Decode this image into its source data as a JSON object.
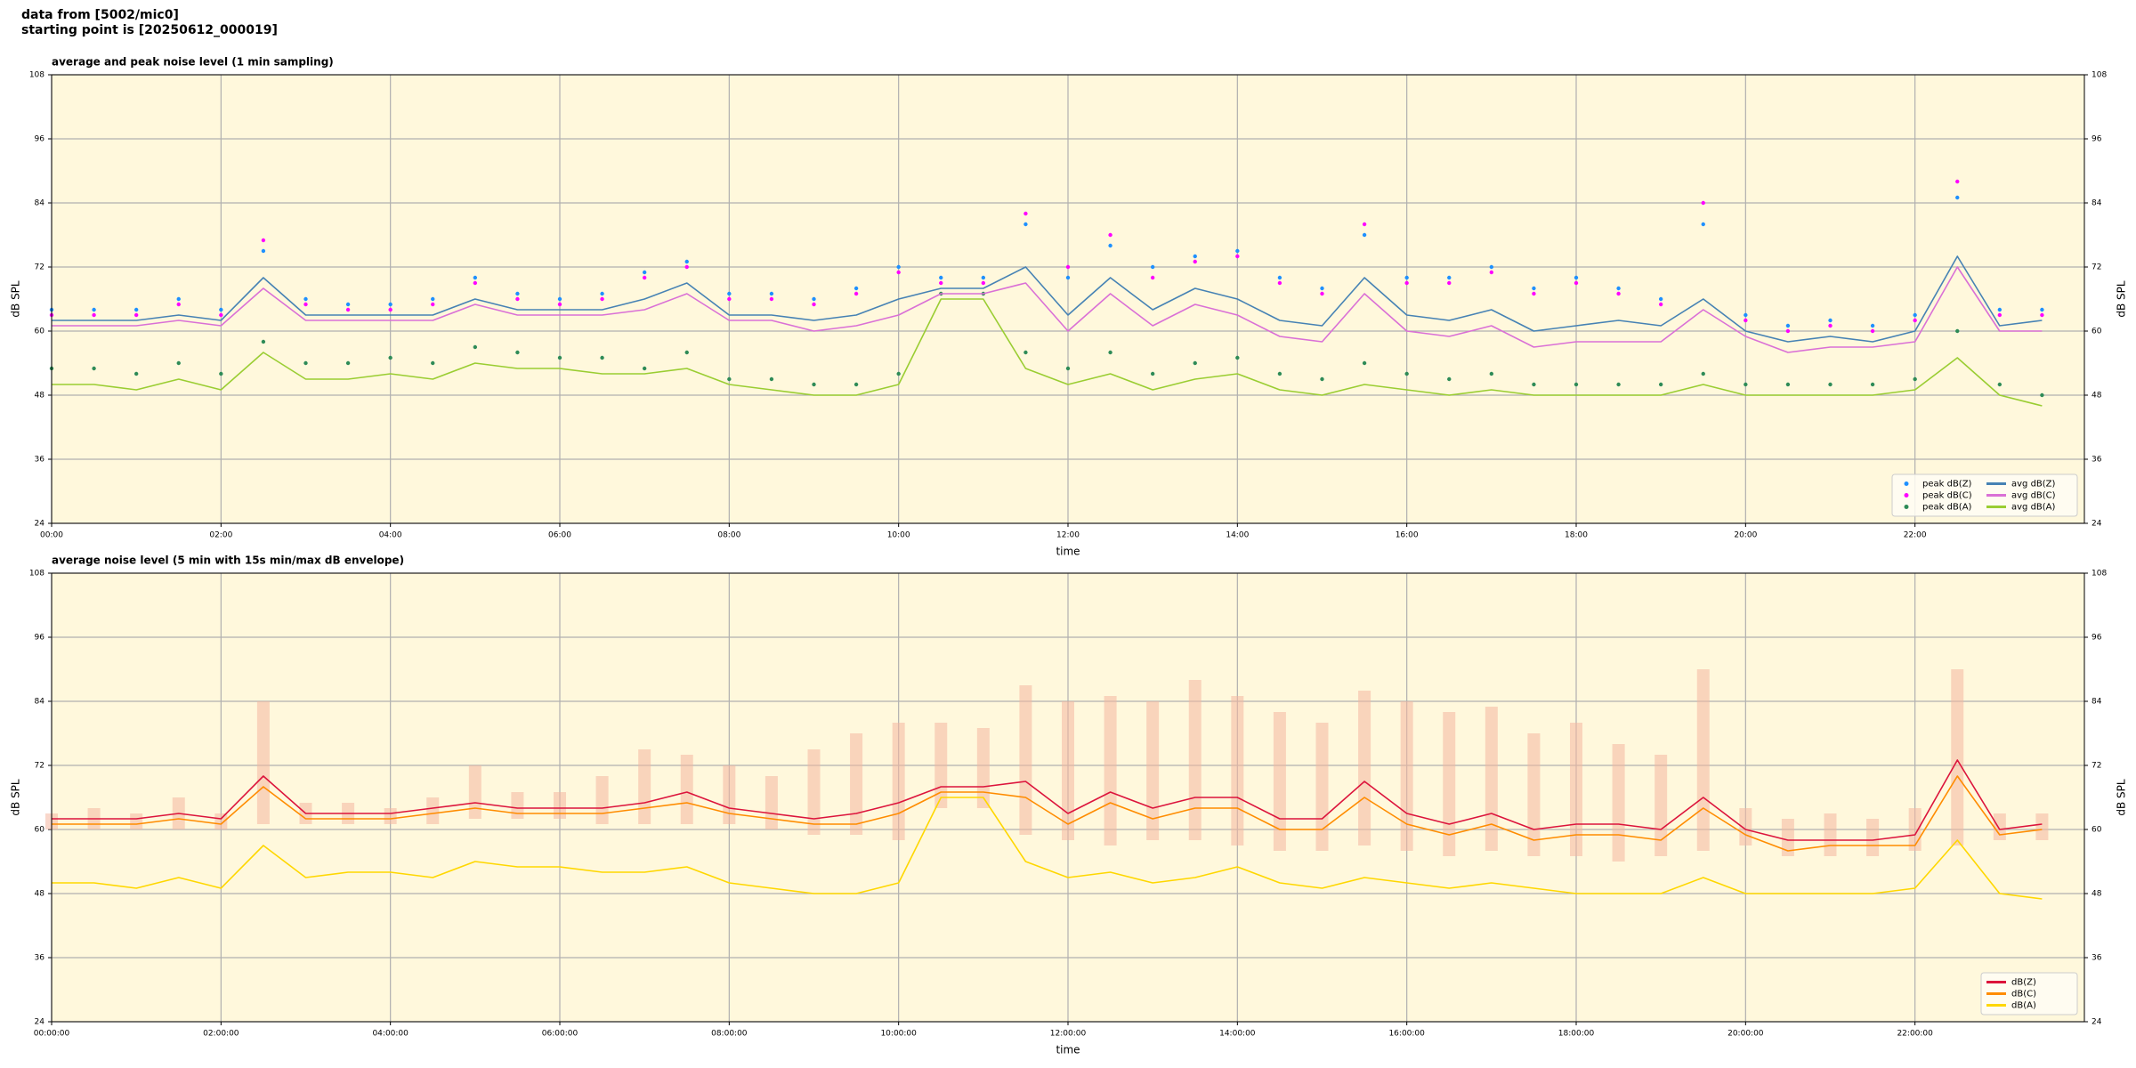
{
  "header": {
    "lines": [
      "data from [5002/mic0]",
      "starting point is [20250612_000019]"
    ]
  },
  "chart_data": [
    {
      "type": "line",
      "title": "average and peak noise level (1 min sampling)",
      "xlabel": "time",
      "ylabel": "dB SPL",
      "background": "#fff8dc",
      "grid": true,
      "legend": "lower right",
      "xlim": [
        0,
        24
      ],
      "ylim": [
        24,
        108
      ],
      "yticks": [
        24,
        36,
        48,
        60,
        72,
        84,
        96,
        108
      ],
      "xticks": [
        {
          "value": 0,
          "label": "00:00"
        },
        {
          "value": 2,
          "label": "02:00"
        },
        {
          "value": 4,
          "label": "04:00"
        },
        {
          "value": 6,
          "label": "06:00"
        },
        {
          "value": 8,
          "label": "08:00"
        },
        {
          "value": 10,
          "label": "10:00"
        },
        {
          "value": 12,
          "label": "12:00"
        },
        {
          "value": 14,
          "label": "14:00"
        },
        {
          "value": 16,
          "label": "16:00"
        },
        {
          "value": 18,
          "label": "18:00"
        },
        {
          "value": 20,
          "label": "20:00"
        },
        {
          "value": 22,
          "label": "22:00"
        }
      ],
      "x": [
        0,
        0.5,
        1,
        1.5,
        2,
        2.5,
        3,
        3.5,
        4,
        4.5,
        5,
        5.5,
        6,
        6.5,
        7,
        7.5,
        8,
        8.5,
        9,
        9.5,
        10,
        10.5,
        11,
        11.5,
        12,
        12.5,
        13,
        13.5,
        14,
        14.5,
        15,
        15.5,
        16,
        16.5,
        17,
        17.5,
        18,
        18.5,
        19,
        19.5,
        20,
        20.5,
        21,
        21.5,
        22,
        22.5,
        23,
        23.5
      ],
      "series": [
        {
          "name": "peak dB(Z)",
          "kind": "points",
          "color": "#1e90ff",
          "values": [
            64,
            64,
            64,
            66,
            64,
            75,
            66,
            65,
            65,
            66,
            70,
            67,
            66,
            67,
            71,
            73,
            67,
            67,
            66,
            68,
            72,
            70,
            70,
            80,
            70,
            76,
            72,
            74,
            75,
            70,
            68,
            78,
            70,
            70,
            72,
            68,
            70,
            68,
            66,
            80,
            63,
            61,
            62,
            61,
            63,
            85,
            64,
            64
          ]
        },
        {
          "name": "peak dB(C)",
          "kind": "points",
          "color": "#ff00ff",
          "values": [
            63,
            63,
            63,
            65,
            63,
            77,
            65,
            64,
            64,
            65,
            69,
            66,
            65,
            66,
            70,
            72,
            66,
            66,
            65,
            67,
            71,
            69,
            69,
            82,
            72,
            78,
            70,
            73,
            74,
            69,
            67,
            80,
            69,
            69,
            71,
            67,
            69,
            67,
            65,
            84,
            62,
            60,
            61,
            60,
            62,
            88,
            63,
            63
          ]
        },
        {
          "name": "peak dB(A)",
          "kind": "points",
          "color": "#2e8b57",
          "values": [
            53,
            53,
            52,
            54,
            52,
            58,
            54,
            54,
            55,
            54,
            57,
            56,
            55,
            55,
            53,
            56,
            51,
            51,
            50,
            50,
            52,
            67,
            67,
            56,
            53,
            56,
            52,
            54,
            55,
            52,
            51,
            54,
            52,
            51,
            52,
            50,
            50,
            50,
            50,
            52,
            50,
            50,
            50,
            50,
            51,
            60,
            50,
            48
          ]
        },
        {
          "name": "avg dB(Z)",
          "kind": "line",
          "color": "#4682b4",
          "values": [
            62,
            62,
            62,
            63,
            62,
            70,
            63,
            63,
            63,
            63,
            66,
            64,
            64,
            64,
            66,
            69,
            63,
            63,
            62,
            63,
            66,
            68,
            68,
            72,
            63,
            70,
            64,
            68,
            66,
            62,
            61,
            70,
            63,
            62,
            64,
            60,
            61,
            62,
            61,
            66,
            60,
            58,
            59,
            58,
            60,
            74,
            61,
            62
          ]
        },
        {
          "name": "avg dB(C)",
          "kind": "line",
          "color": "#da70d6",
          "values": [
            61,
            61,
            61,
            62,
            61,
            68,
            62,
            62,
            62,
            62,
            65,
            63,
            63,
            63,
            64,
            67,
            62,
            62,
            60,
            61,
            63,
            67,
            67,
            69,
            60,
            67,
            61,
            65,
            63,
            59,
            58,
            67,
            60,
            59,
            61,
            57,
            58,
            58,
            58,
            64,
            59,
            56,
            57,
            57,
            58,
            72,
            60,
            60
          ]
        },
        {
          "name": "avg dB(A)",
          "kind": "line",
          "color": "#9acd32",
          "values": [
            50,
            50,
            49,
            51,
            49,
            56,
            51,
            51,
            52,
            51,
            54,
            53,
            53,
            52,
            52,
            53,
            50,
            49,
            48,
            48,
            50,
            66,
            66,
            53,
            50,
            52,
            49,
            51,
            52,
            49,
            48,
            50,
            49,
            48,
            49,
            48,
            48,
            48,
            48,
            50,
            48,
            48,
            48,
            48,
            49,
            55,
            48,
            46
          ]
        }
      ]
    },
    {
      "type": "line",
      "title": "average noise level (5 min with 15s min/max dB envelope)",
      "xlabel": "time",
      "ylabel": "dB SPL",
      "background": "#fff8dc",
      "grid": true,
      "legend": "lower right",
      "xlim": [
        0,
        24
      ],
      "ylim": [
        24,
        108
      ],
      "yticks": [
        24,
        36,
        48,
        60,
        72,
        84,
        96,
        108
      ],
      "xticks": [
        {
          "value": 0,
          "label": "00:00:00"
        },
        {
          "value": 2,
          "label": "02:00:00"
        },
        {
          "value": 4,
          "label": "04:00:00"
        },
        {
          "value": 6,
          "label": "06:00:00"
        },
        {
          "value": 8,
          "label": "08:00:00"
        },
        {
          "value": 10,
          "label": "10:00:00"
        },
        {
          "value": 12,
          "label": "12:00:00"
        },
        {
          "value": 14,
          "label": "14:00:00"
        },
        {
          "value": 16,
          "label": "16:00:00"
        },
        {
          "value": 18,
          "label": "18:00:00"
        },
        {
          "value": 20,
          "label": "20:00:00"
        },
        {
          "value": 22,
          "label": "22:00:00"
        }
      ],
      "x": [
        0,
        0.5,
        1,
        1.5,
        2,
        2.5,
        3,
        3.5,
        4,
        4.5,
        5,
        5.5,
        6,
        6.5,
        7,
        7.5,
        8,
        8.5,
        9,
        9.5,
        10,
        10.5,
        11,
        11.5,
        12,
        12.5,
        13,
        13.5,
        14,
        14.5,
        15,
        15.5,
        16,
        16.5,
        17,
        17.5,
        18,
        18.5,
        19,
        19.5,
        20,
        20.5,
        21,
        21.5,
        22,
        22.5,
        23,
        23.5
      ],
      "envelope": {
        "color": "#f4b6a0",
        "opacity": 0.55,
        "max": [
          63,
          64,
          63,
          66,
          63,
          84,
          65,
          65,
          64,
          66,
          72,
          67,
          67,
          70,
          75,
          74,
          72,
          70,
          75,
          78,
          80,
          80,
          79,
          87,
          84,
          85,
          84,
          88,
          85,
          82,
          80,
          86,
          84,
          82,
          83,
          78,
          80,
          76,
          74,
          90,
          64,
          62,
          63,
          62,
          64,
          90,
          63,
          63
        ],
        "min": [
          60,
          60,
          60,
          60,
          60,
          61,
          61,
          61,
          61,
          61,
          62,
          62,
          62,
          61,
          61,
          61,
          61,
          60,
          59,
          59,
          58,
          64,
          64,
          59,
          58,
          57,
          58,
          58,
          57,
          56,
          56,
          57,
          56,
          55,
          56,
          55,
          55,
          54,
          55,
          56,
          57,
          55,
          55,
          55,
          56,
          57,
          58,
          58
        ]
      },
      "series": [
        {
          "name": "dB(Z)",
          "kind": "line",
          "color": "#dc143c",
          "values": [
            62,
            62,
            62,
            63,
            62,
            70,
            63,
            63,
            63,
            64,
            65,
            64,
            64,
            64,
            65,
            67,
            64,
            63,
            62,
            63,
            65,
            68,
            68,
            69,
            63,
            67,
            64,
            66,
            66,
            62,
            62,
            69,
            63,
            61,
            63,
            60,
            61,
            61,
            60,
            66,
            60,
            58,
            58,
            58,
            59,
            73,
            60,
            61
          ]
        },
        {
          "name": "dB(C)",
          "kind": "line",
          "color": "#ff8c00",
          "values": [
            61,
            61,
            61,
            62,
            61,
            68,
            62,
            62,
            62,
            63,
            64,
            63,
            63,
            63,
            64,
            65,
            63,
            62,
            61,
            61,
            63,
            67,
            67,
            66,
            61,
            65,
            62,
            64,
            64,
            60,
            60,
            66,
            61,
            59,
            61,
            58,
            59,
            59,
            58,
            64,
            59,
            56,
            57,
            57,
            57,
            70,
            59,
            60
          ]
        },
        {
          "name": "dB(A)",
          "kind": "line",
          "color": "#ffd700",
          "values": [
            50,
            50,
            49,
            51,
            49,
            57,
            51,
            52,
            52,
            51,
            54,
            53,
            53,
            52,
            52,
            53,
            50,
            49,
            48,
            48,
            50,
            66,
            66,
            54,
            51,
            52,
            50,
            51,
            53,
            50,
            49,
            51,
            50,
            49,
            50,
            49,
            48,
            48,
            48,
            51,
            48,
            48,
            48,
            48,
            49,
            58,
            48,
            47
          ]
        }
      ]
    }
  ]
}
